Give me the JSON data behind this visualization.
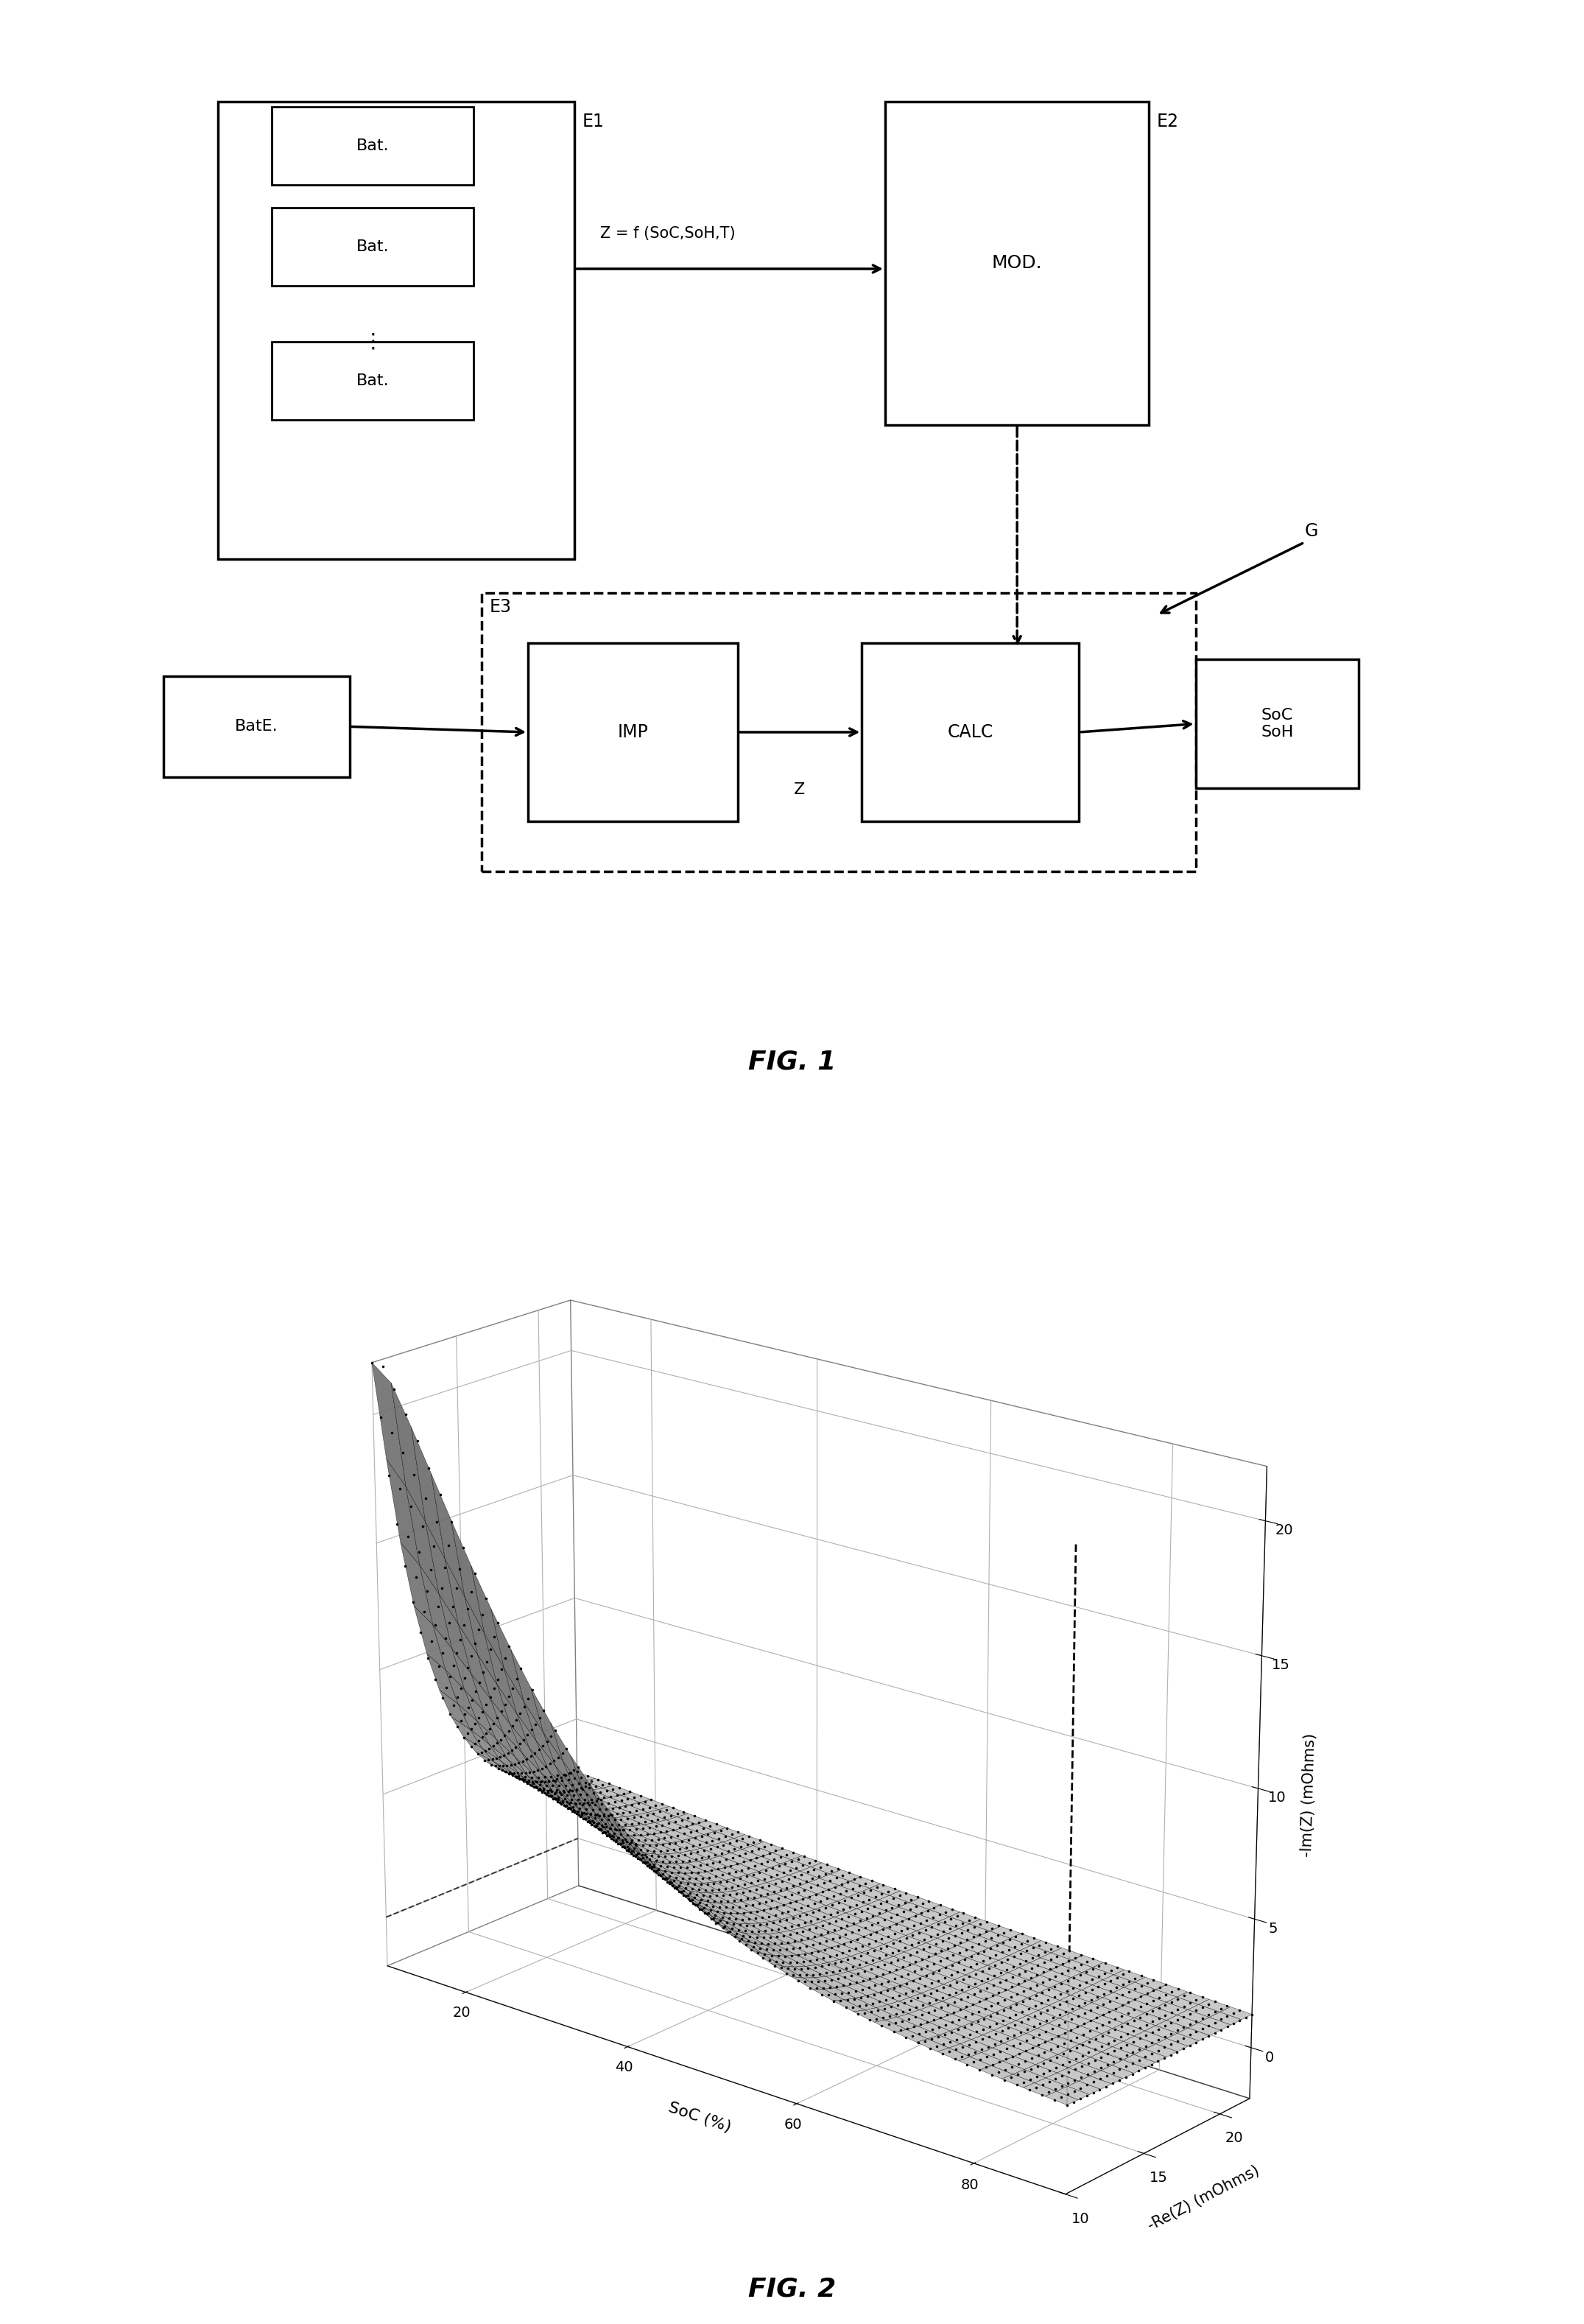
{
  "fig1_title": "FIG. 1",
  "fig2_title": "FIG. 2",
  "bg_color": "#ffffff",
  "line_color": "#000000",
  "fig2": {
    "xlabel": "SoC (%)",
    "ylabel": "-Re(Z) (mOhms)",
    "zlabel": "-Im(Z) (mOhms)",
    "xlim": [
      10,
      90
    ],
    "ylim": [
      10,
      22
    ],
    "zlim": [
      -2,
      22
    ],
    "xticks": [
      20,
      40,
      60,
      80
    ],
    "yticks": [
      10,
      15,
      20
    ],
    "zticks": [
      0,
      5,
      10,
      15,
      20
    ]
  }
}
